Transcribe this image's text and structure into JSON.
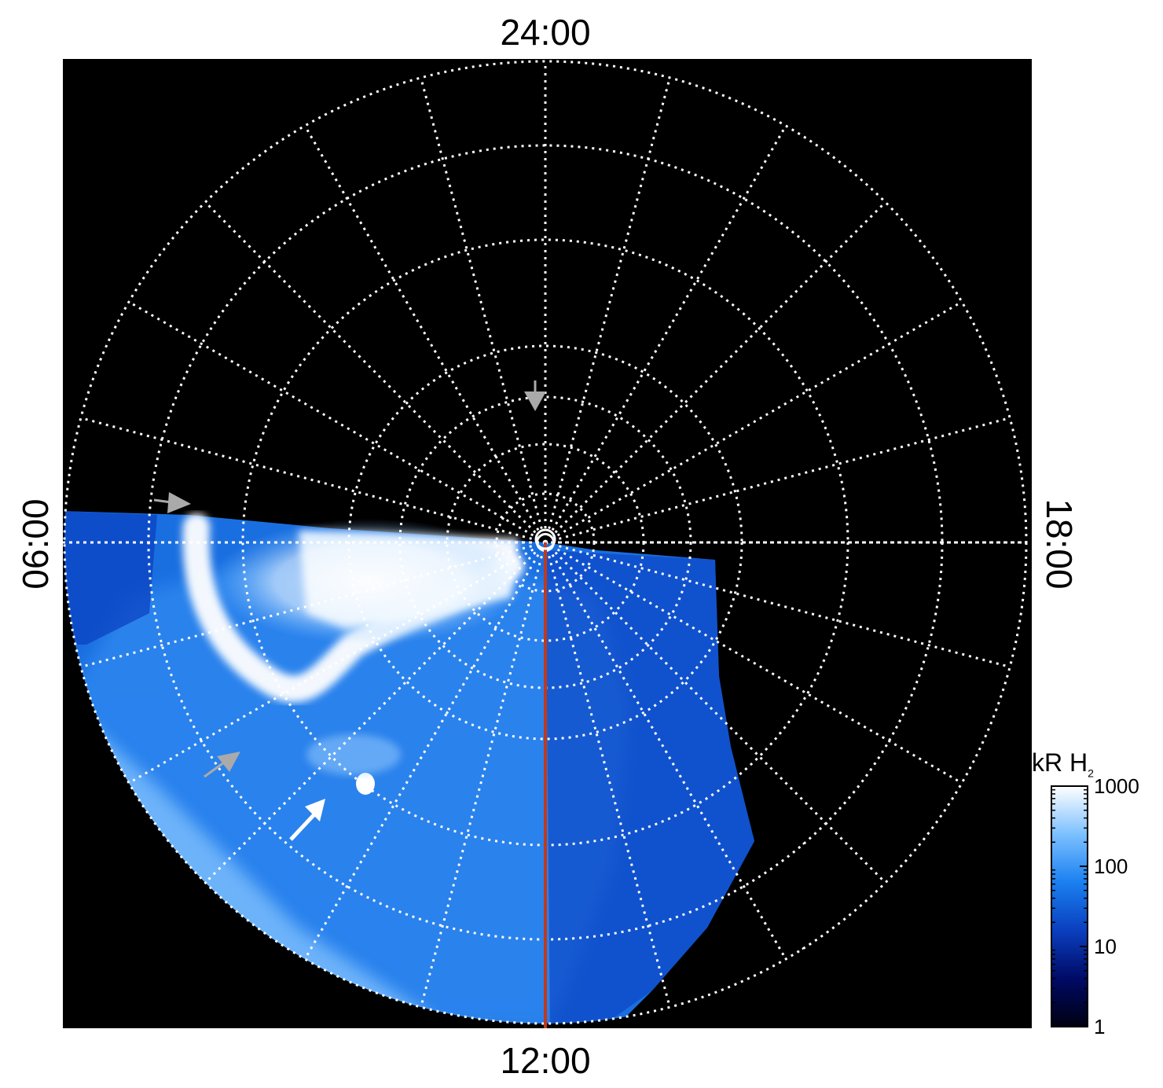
{
  "chart_data": {
    "type": "heatmap",
    "projection": "polar",
    "description_none": "",
    "local_time_labels": {
      "top": "24:00",
      "bottom": "12:00",
      "left": "06:00",
      "right": "18:00"
    },
    "colorbar": {
      "unit": "kR H",
      "unit_subscript": "2",
      "scale": "log",
      "range": [
        1,
        1000
      ],
      "ticks": [
        {
          "value": 1000,
          "label": "1000"
        },
        {
          "value": 100,
          "label": "100"
        },
        {
          "value": 10,
          "label": "10"
        },
        {
          "value": 1,
          "label": "1"
        }
      ],
      "colors": [
        "#000010",
        "#000a66",
        "#0a3fbf",
        "#1a80f0",
        "#7cc0ff",
        "#ffffff"
      ]
    },
    "grid": true,
    "grid_style": "dotted",
    "grid_color": "#ffffff",
    "background": "#000000",
    "meridian_line_color": "#c0391b",
    "arrow_colors": {
      "white": "#ffffff",
      "gray": "#aaaaaa"
    }
  }
}
